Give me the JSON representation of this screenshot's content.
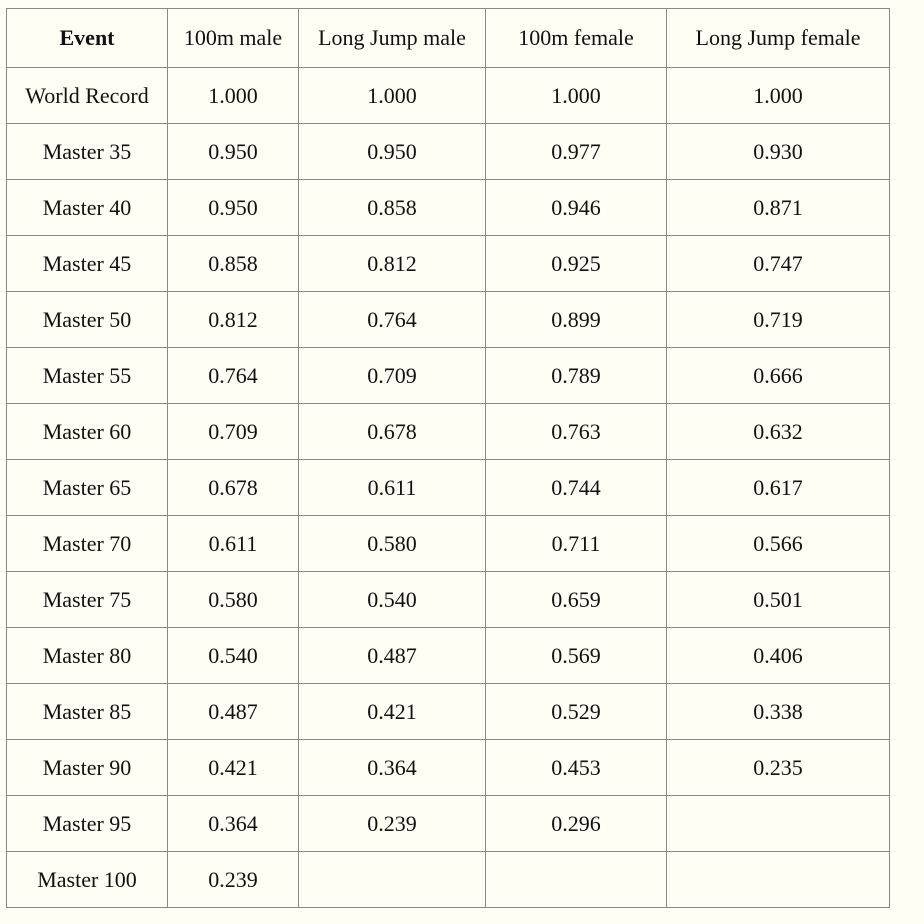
{
  "table": {
    "headers": [
      "Event",
      "100m male",
      "Long Jump male",
      "100m female",
      "Long Jump female"
    ],
    "rows": [
      [
        "World Record",
        "1.000",
        "1.000",
        "1.000",
        "1.000"
      ],
      [
        "Master 35",
        "0.950",
        "0.950",
        "0.977",
        "0.930"
      ],
      [
        "Master 40",
        "0.950",
        "0.858",
        "0.946",
        "0.871"
      ],
      [
        "Master 45",
        "0.858",
        "0.812",
        "0.925",
        "0.747"
      ],
      [
        "Master 50",
        "0.812",
        "0.764",
        "0.899",
        "0.719"
      ],
      [
        "Master 55",
        "0.764",
        "0.709",
        "0.789",
        "0.666"
      ],
      [
        "Master 60",
        "0.709",
        "0.678",
        "0.763",
        "0.632"
      ],
      [
        "Master 65",
        "0.678",
        "0.611",
        "0.744",
        "0.617"
      ],
      [
        "Master 70",
        "0.611",
        "0.580",
        "0.711",
        "0.566"
      ],
      [
        "Master 75",
        "0.580",
        "0.540",
        "0.659",
        "0.501"
      ],
      [
        "Master 80",
        "0.540",
        "0.487",
        "0.569",
        "0.406"
      ],
      [
        "Master 85",
        "0.487",
        "0.421",
        "0.529",
        "0.338"
      ],
      [
        "Master 90",
        "0.421",
        "0.364",
        "0.453",
        "0.235"
      ],
      [
        "Master 95",
        "0.364",
        "0.239",
        "0.296",
        ""
      ],
      [
        "Master 100",
        "0.239",
        "",
        "",
        ""
      ]
    ]
  }
}
